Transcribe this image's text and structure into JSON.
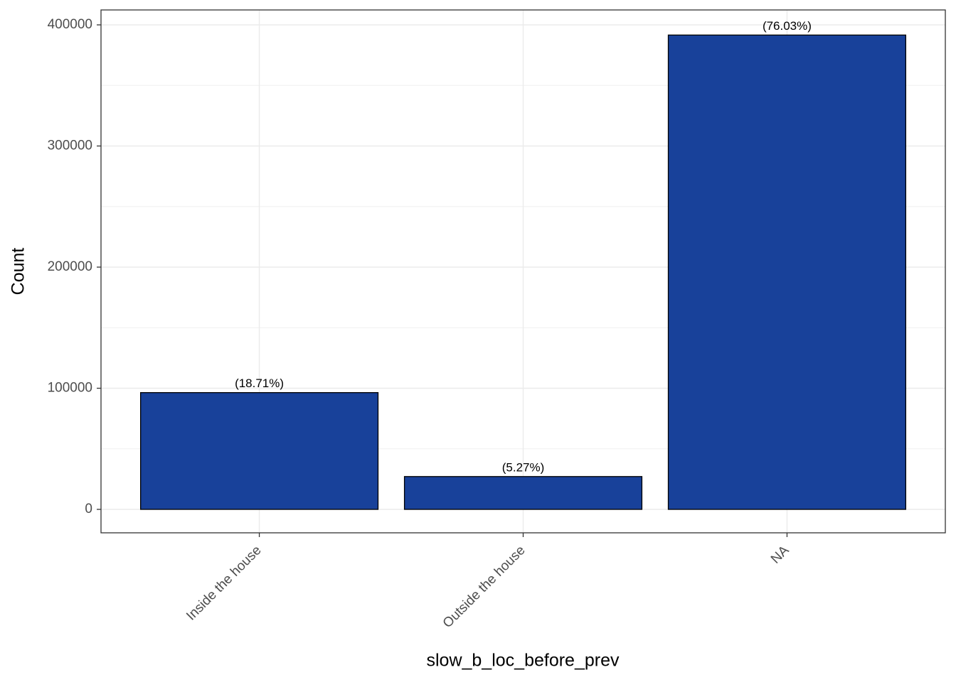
{
  "chart_data": {
    "type": "bar",
    "categories": [
      "Inside the house",
      "Outside the house",
      "NA"
    ],
    "values": [
      96400,
      27100,
      391600
    ],
    "labels": [
      "(18.71%)",
      "(5.27%)",
      "(76.03%)"
    ],
    "color": "#18419a",
    "x_label": "slow_b_loc_before_prev",
    "y_label": "Count",
    "ylim": [
      -19355,
      412317
    ],
    "yticks": [
      0,
      100000,
      200000,
      300000,
      400000
    ],
    "grid": true
  }
}
